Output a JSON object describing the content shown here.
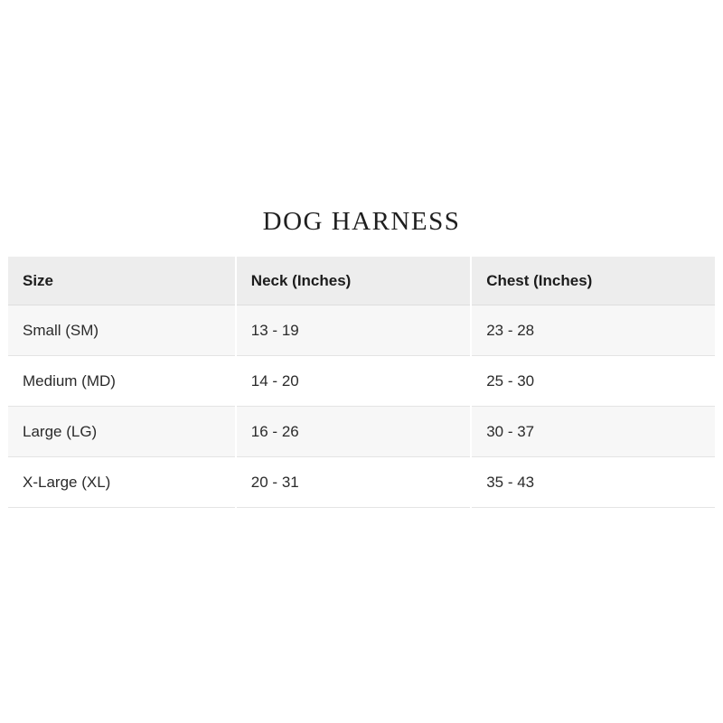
{
  "title": "DOG HARNESS",
  "table": {
    "columns": [
      "Size",
      "Neck (Inches)",
      "Chest (Inches)"
    ],
    "rows": [
      {
        "size": "Small (SM)",
        "neck": "13 - 19",
        "chest": "23 - 28"
      },
      {
        "size": "Medium (MD)",
        "neck": "14 - 20",
        "chest": "25 - 30"
      },
      {
        "size": "Large (LG)",
        "neck": "16 - 26",
        "chest": "30 - 37"
      },
      {
        "size": "X-Large (XL)",
        "neck": "20 - 31",
        "chest": "35 - 43"
      }
    ]
  },
  "colors": {
    "header_bg": "#ededed",
    "row_alt_bg": "#f7f7f7",
    "row_bg": "#ffffff",
    "border": "#e4e4e4",
    "column_gap": "#ffffff",
    "text": "#2b2b2b",
    "title_text": "#1f1f1f"
  }
}
